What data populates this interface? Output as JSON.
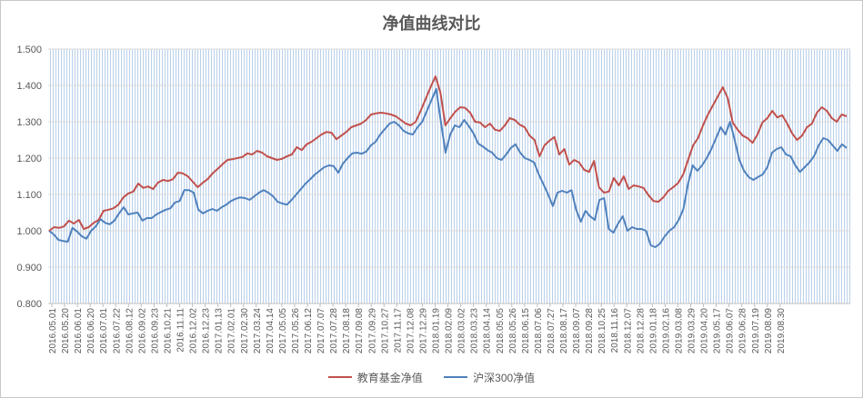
{
  "chart_data": {
    "type": "line",
    "title": "净值曲线对比",
    "xlabel": "",
    "ylabel": "",
    "ylim": [
      0.8,
      1.5
    ],
    "yticks": [
      "0.800",
      "0.900",
      "1.000",
      "1.100",
      "1.200",
      "1.300",
      "1.400",
      "1.500"
    ],
    "xticks": [
      "2016.05.01",
      "2016.05.20",
      "2016.06.01",
      "2016.06.20",
      "2016.07.01",
      "2016.07.22",
      "2016.08.12",
      "2016.09.02",
      "2016.09.23",
      "2016.10.21",
      "2016.11.11",
      "2016.12.02",
      "2016.12.23",
      "2017.01.13",
      "2017.02.01",
      "2017.02.30",
      "2017.03.24",
      "2017.04.14",
      "2017.05.05",
      "2017.05.26",
      "2017.06.12",
      "2017.07.07",
      "2017.07.28",
      "2017.08.18",
      "2017.09.08",
      "2017.09.29",
      "2017.10.27",
      "2017.11.17",
      "2017.12.08",
      "2017.12.29",
      "2018.01.19",
      "2018.02.09",
      "2018.03.02",
      "2018.03.23",
      "2018.04.14",
      "2018.05.05",
      "2018.05.26",
      "2018.06.15",
      "2018.07.06",
      "2018.07.27",
      "2018.08.17",
      "2018.09.07",
      "2018.09.28",
      "2018.10.25",
      "2018.11.16",
      "2018.12.07",
      "2018.12.28",
      "2019.01.18",
      "2019.02.16",
      "2019.03.08",
      "2019.03.29",
      "2019.04.20",
      "2019.05.17",
      "2019.06.07",
      "2019.06.28",
      "2019.07.19",
      "2019.08.09",
      "2019.08.30"
    ],
    "grid": "vertical hatch",
    "legend_position": "bottom",
    "series": [
      {
        "name": "教育基金净值",
        "color": "#c0504d",
        "values": [
          1.0,
          1.01,
          1.008,
          1.012,
          1.028,
          1.02,
          1.03,
          1.005,
          1.01,
          1.022,
          1.03,
          1.055,
          1.058,
          1.062,
          1.072,
          1.092,
          1.103,
          1.108,
          1.13,
          1.118,
          1.122,
          1.115,
          1.133,
          1.14,
          1.137,
          1.142,
          1.16,
          1.158,
          1.15,
          1.135,
          1.12,
          1.132,
          1.142,
          1.158,
          1.17,
          1.183,
          1.195,
          1.197,
          1.2,
          1.203,
          1.213,
          1.21,
          1.22,
          1.215,
          1.205,
          1.2,
          1.195,
          1.198,
          1.205,
          1.21,
          1.23,
          1.222,
          1.238,
          1.245,
          1.255,
          1.265,
          1.272,
          1.27,
          1.252,
          1.262,
          1.272,
          1.285,
          1.29,
          1.295,
          1.305,
          1.32,
          1.323,
          1.325,
          1.323,
          1.32,
          1.315,
          1.305,
          1.295,
          1.29,
          1.3,
          1.33,
          1.362,
          1.395,
          1.425,
          1.38,
          1.29,
          1.31,
          1.328,
          1.34,
          1.338,
          1.325,
          1.3,
          1.298,
          1.285,
          1.295,
          1.278,
          1.275,
          1.29,
          1.31,
          1.305,
          1.292,
          1.285,
          1.262,
          1.25,
          1.205,
          1.235,
          1.248,
          1.258,
          1.21,
          1.225,
          1.182,
          1.195,
          1.188,
          1.168,
          1.162,
          1.192,
          1.12,
          1.105,
          1.108,
          1.145,
          1.125,
          1.15,
          1.115,
          1.125,
          1.122,
          1.118,
          1.098,
          1.082,
          1.08,
          1.092,
          1.11,
          1.12,
          1.132,
          1.155,
          1.195,
          1.235,
          1.255,
          1.29,
          1.32,
          1.345,
          1.37,
          1.395,
          1.365,
          1.298,
          1.278,
          1.262,
          1.255,
          1.242,
          1.265,
          1.298,
          1.31,
          1.33,
          1.312,
          1.318,
          1.295,
          1.268,
          1.25,
          1.262,
          1.285,
          1.295,
          1.325,
          1.34,
          1.33,
          1.31,
          1.3,
          1.32,
          1.315
        ]
      },
      {
        "name": "沪深300净值",
        "color": "#4f81bd",
        "values": [
          1.0,
          0.99,
          0.975,
          0.972,
          0.97,
          1.008,
          0.998,
          0.985,
          0.978,
          1.0,
          1.012,
          1.032,
          1.022,
          1.018,
          1.028,
          1.048,
          1.065,
          1.045,
          1.048,
          1.05,
          1.028,
          1.035,
          1.035,
          1.045,
          1.052,
          1.058,
          1.062,
          1.078,
          1.082,
          1.112,
          1.112,
          1.105,
          1.058,
          1.048,
          1.055,
          1.06,
          1.055,
          1.065,
          1.072,
          1.082,
          1.088,
          1.092,
          1.09,
          1.085,
          1.095,
          1.105,
          1.112,
          1.105,
          1.095,
          1.08,
          1.075,
          1.072,
          1.085,
          1.1,
          1.115,
          1.13,
          1.142,
          1.155,
          1.165,
          1.175,
          1.18,
          1.178,
          1.16,
          1.185,
          1.2,
          1.213,
          1.215,
          1.212,
          1.218,
          1.235,
          1.245,
          1.265,
          1.28,
          1.295,
          1.3,
          1.29,
          1.275,
          1.268,
          1.265,
          1.285,
          1.3,
          1.33,
          1.36,
          1.39,
          1.3,
          1.215,
          1.265,
          1.29,
          1.285,
          1.305,
          1.288,
          1.268,
          1.24,
          1.232,
          1.222,
          1.215,
          1.2,
          1.195,
          1.21,
          1.228,
          1.238,
          1.215,
          1.2,
          1.195,
          1.188,
          1.155,
          1.128,
          1.1,
          1.068,
          1.105,
          1.11,
          1.105,
          1.112,
          1.058,
          1.025,
          1.055,
          1.04,
          1.03,
          1.085,
          1.09,
          1.005,
          0.995,
          1.02,
          1.04,
          1.0,
          1.01,
          1.005,
          1.005,
          1.0,
          0.96,
          0.955,
          0.965,
          0.985,
          1.0,
          1.01,
          1.03,
          1.06,
          1.13,
          1.18,
          1.165,
          1.18,
          1.2,
          1.225,
          1.255,
          1.285,
          1.265,
          1.3,
          1.25,
          1.195,
          1.165,
          1.148,
          1.14,
          1.148,
          1.155,
          1.175,
          1.215,
          1.225,
          1.23,
          1.21,
          1.205,
          1.18,
          1.162,
          1.175,
          1.188,
          1.205,
          1.235,
          1.255,
          1.25,
          1.235,
          1.22,
          1.238,
          1.228
        ]
      }
    ]
  }
}
